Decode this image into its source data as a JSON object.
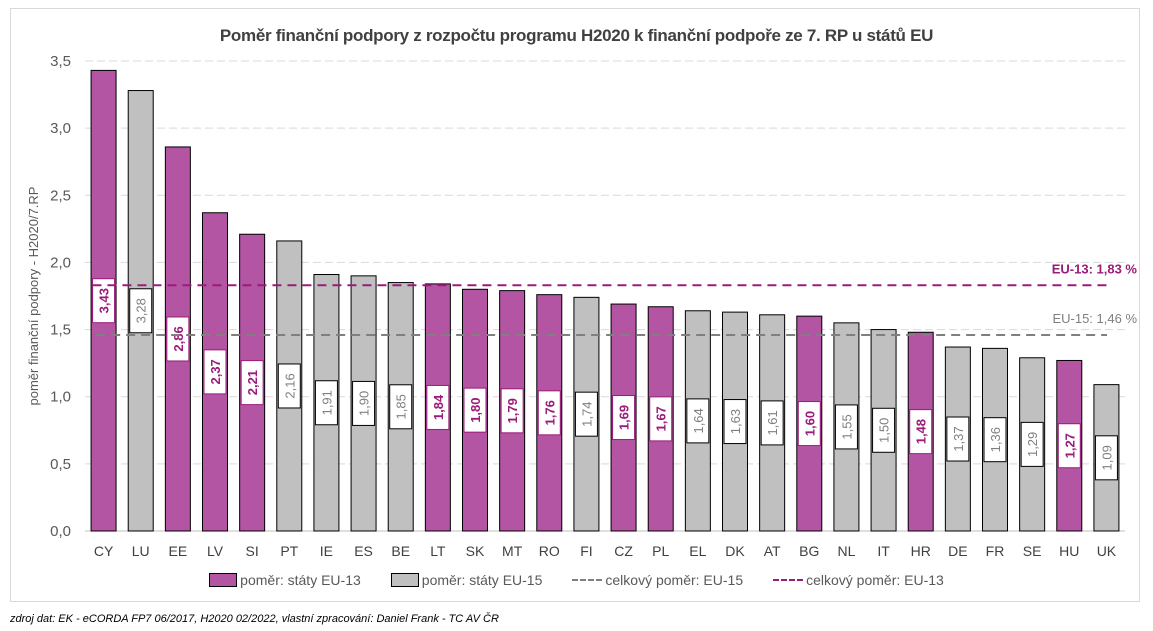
{
  "chart_data": {
    "type": "bar",
    "title": "Poměr finanční podpory z rozpočtu programu H2020 k finanční podpoře ze 7. RP u států EU",
    "ylabel": "poměr finanční podpory - H2020/7.RP",
    "xlabel": "",
    "ylim": [
      0,
      3.5
    ],
    "yticks": [
      "0,0",
      "0,5",
      "1,0",
      "1,5",
      "2,0",
      "2,5",
      "3,0",
      "3,5"
    ],
    "grid": true,
    "categories": [
      "CY",
      "LU",
      "EE",
      "LV",
      "SI",
      "PT",
      "IE",
      "ES",
      "BE",
      "LT",
      "SK",
      "MT",
      "RO",
      "FI",
      "CZ",
      "PL",
      "EL",
      "DK",
      "AT",
      "BG",
      "NL",
      "IT",
      "HR",
      "DE",
      "FR",
      "SE",
      "HU",
      "UK"
    ],
    "values": [
      3.43,
      3.28,
      2.86,
      2.37,
      2.21,
      2.16,
      1.91,
      1.9,
      1.85,
      1.84,
      1.8,
      1.79,
      1.76,
      1.74,
      1.69,
      1.67,
      1.64,
      1.63,
      1.61,
      1.6,
      1.55,
      1.5,
      1.48,
      1.37,
      1.36,
      1.29,
      1.27,
      1.09
    ],
    "labels": [
      "3,43",
      "3,28",
      "2,86",
      "2,37",
      "2,21",
      "2,16",
      "1,91",
      "1,90",
      "1,85",
      "1,84",
      "1,80",
      "1,79",
      "1,76",
      "1,74",
      "1,69",
      "1,67",
      "1,64",
      "1,63",
      "1,61",
      "1,60",
      "1,55",
      "1,50",
      "1,48",
      "1,37",
      "1,36",
      "1,29",
      "1,27",
      "1,09"
    ],
    "group": [
      "EU-13",
      "EU-15",
      "EU-13",
      "EU-13",
      "EU-13",
      "EU-15",
      "EU-15",
      "EU-15",
      "EU-15",
      "EU-13",
      "EU-13",
      "EU-13",
      "EU-13",
      "EU-15",
      "EU-13",
      "EU-13",
      "EU-15",
      "EU-15",
      "EU-15",
      "EU-13",
      "EU-15",
      "EU-15",
      "EU-13",
      "EU-15",
      "EU-15",
      "EU-15",
      "EU-13",
      "EU-15"
    ],
    "reference_lines": [
      {
        "name": "celkový poměr: EU-13",
        "value": 1.83,
        "label": "EU-13: 1,83 %",
        "color": "#9b1b7a"
      },
      {
        "name": "celkový poměr: EU-15",
        "value": 1.46,
        "label": "EU-15: 1,46 %",
        "color": "#7f7f7f"
      }
    ],
    "legend": [
      "poměr: státy EU-13",
      "poměr: státy EU-15",
      "celkový poměr: EU-15",
      "celkový poměr: EU-13"
    ],
    "legend_position": "bottom",
    "colors": {
      "EU-13": "#b455a3",
      "EU-15": "#c0c0c0",
      "label_EU-13": "#9b1b7a",
      "label_EU-15": "#7f7f7f"
    }
  },
  "source": "zdroj dat: EK - eCORDA FP7 06/2017, H2020 02/2022, vlastní zpracování: Daniel Frank - TC AV ČR"
}
